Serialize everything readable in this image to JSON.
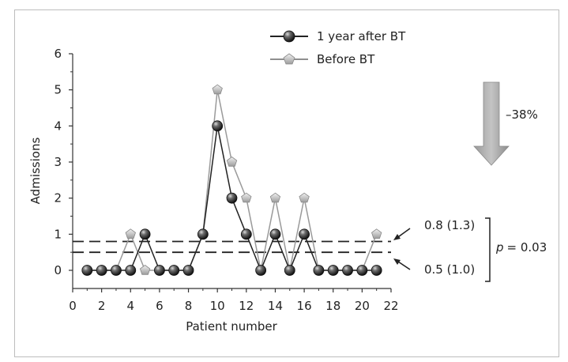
{
  "chart_data": {
    "type": "line",
    "xlabel": "Patient number",
    "ylabel": "Admissions",
    "xlim": [
      0,
      22
    ],
    "ylim": [
      0,
      6
    ],
    "x_ticks": [
      0,
      2,
      4,
      6,
      8,
      10,
      12,
      14,
      16,
      18,
      20,
      22
    ],
    "y_ticks": [
      0,
      1,
      2,
      3,
      4,
      5,
      6
    ],
    "x": [
      1,
      2,
      3,
      4,
      5,
      6,
      7,
      8,
      9,
      10,
      11,
      12,
      13,
      14,
      15,
      16,
      17,
      18,
      19,
      20,
      21
    ],
    "series": [
      {
        "name": "1 year after BT",
        "values": [
          0,
          0,
          0,
          0,
          1,
          0,
          0,
          0,
          1,
          4,
          2,
          1,
          0,
          1,
          0,
          1,
          0,
          0,
          0,
          0,
          0
        ],
        "color": "#222222",
        "marker": "sphere"
      },
      {
        "name": "Before BT",
        "values": [
          0,
          0,
          0,
          1,
          0,
          0,
          0,
          0,
          1,
          5,
          3,
          2,
          0,
          2,
          0,
          2,
          0,
          0,
          0,
          0,
          1
        ],
        "color": "#9a9a9a",
        "marker": "pentagon"
      }
    ],
    "reference_lines": [
      {
        "value": 0.8,
        "label": "0.8 (1.3)"
      },
      {
        "value": 0.5,
        "label": "0.5 (1.0)"
      }
    ],
    "p_label": "p",
    "p_value_text": "= 0.03",
    "reduction_label": "–38%",
    "legend_position": "top"
  }
}
